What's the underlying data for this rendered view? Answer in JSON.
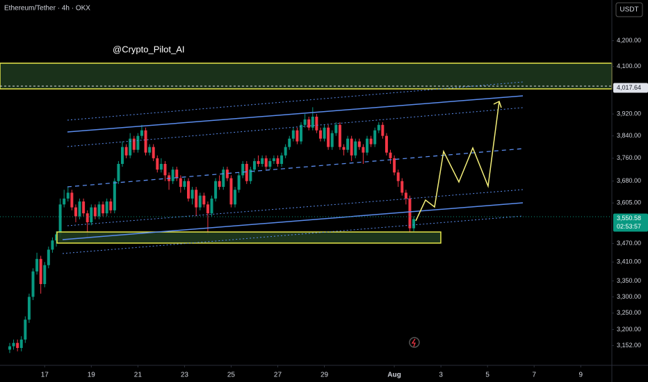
{
  "chart_data": {
    "type": "candlestick",
    "header": "Ethereum/Tether · 4h · OKX",
    "watermark": "@Crypto_Pilot_AI",
    "currency": "USDT",
    "log_scale": true,
    "up_color": "#089981",
    "down_color": "#f23645",
    "xlim": [
      -46,
      584
    ],
    "ylim": [
      3094,
      4364
    ],
    "xticks": [
      {
        "value": 0,
        "label": "17"
      },
      {
        "value": 48,
        "label": "19"
      },
      {
        "value": 96,
        "label": "21"
      },
      {
        "value": 144,
        "label": "23"
      },
      {
        "value": 192,
        "label": "25"
      },
      {
        "value": 240,
        "label": "27"
      },
      {
        "value": 288,
        "label": "29"
      },
      {
        "value": 360,
        "label": "Aug"
      },
      {
        "value": 408,
        "label": "3"
      },
      {
        "value": 456,
        "label": "5"
      },
      {
        "value": 504,
        "label": "7"
      },
      {
        "value": 552,
        "label": "9"
      }
    ],
    "yticks": [
      {
        "value": 4200,
        "label": "4,200.00"
      },
      {
        "value": 4100,
        "label": "4,100.00"
      },
      {
        "value": 4017.64,
        "label": "4,017.64"
      },
      {
        "value": 3920,
        "label": "3,920.00"
      },
      {
        "value": 3840,
        "label": "3,840.00"
      },
      {
        "value": 3760,
        "label": "3,760.00"
      },
      {
        "value": 3680,
        "label": "3,680.00"
      },
      {
        "value": 3605,
        "label": "3,605.00"
      },
      {
        "value": 3470,
        "label": "3,470.00"
      },
      {
        "value": 3410,
        "label": "3,410.00"
      },
      {
        "value": 3350,
        "label": "3,350.00"
      },
      {
        "value": 3300,
        "label": "3,300.00"
      },
      {
        "value": 3250,
        "label": "3,250.00"
      },
      {
        "value": 3200,
        "label": "3,200.00"
      },
      {
        "value": 3152,
        "label": "3,152.00"
      }
    ],
    "last_price": {
      "value": 3550.58,
      "label": "3,550.58"
    },
    "countdown": "02:53:57",
    "x": [
      -36,
      -32,
      -28,
      -24,
      -20,
      -16,
      -12,
      -8,
      -4,
      0,
      4,
      8,
      12,
      16,
      20,
      24,
      28,
      32,
      36,
      40,
      44,
      48,
      52,
      56,
      60,
      64,
      68,
      72,
      76,
      80,
      84,
      88,
      92,
      96,
      100,
      104,
      108,
      112,
      116,
      120,
      124,
      128,
      132,
      136,
      140,
      144,
      148,
      152,
      156,
      160,
      164,
      168,
      172,
      176,
      180,
      184,
      188,
      192,
      196,
      200,
      204,
      208,
      212,
      216,
      220,
      224,
      228,
      232,
      236,
      240,
      244,
      248,
      252,
      256,
      260,
      264,
      268,
      272,
      276,
      280,
      284,
      288,
      292,
      296,
      300,
      304,
      308,
      312,
      316,
      320,
      324,
      328,
      332,
      336,
      340,
      344,
      348,
      352,
      356,
      360,
      364,
      368,
      372,
      376,
      380
    ],
    "open": [
      3140,
      3150,
      3160,
      3145,
      3170,
      3230,
      3300,
      3380,
      3420,
      3340,
      3400,
      3450,
      3480,
      3500,
      3600,
      3620,
      3640,
      3590,
      3560,
      3610,
      3570,
      3540,
      3590,
      3560,
      3600,
      3570,
      3610,
      3580,
      3680,
      3740,
      3800,
      3770,
      3830,
      3790,
      3840,
      3860,
      3780,
      3800,
      3760,
      3720,
      3740,
      3700,
      3680,
      3720,
      3690,
      3660,
      3680,
      3620,
      3650,
      3590,
      3630,
      3600,
      3570,
      3620,
      3680,
      3660,
      3720,
      3690,
      3600,
      3650,
      3700,
      3740,
      3680,
      3720,
      3750,
      3740,
      3760,
      3730,
      3750,
      3760,
      3740,
      3770,
      3800,
      3830,
      3860,
      3820,
      3880,
      3900,
      3870,
      3910,
      3860,
      3830,
      3870,
      3800,
      3850,
      3880,
      3800,
      3790,
      3830,
      3770,
      3820,
      3800,
      3780,
      3830,
      3810,
      3860,
      3880,
      3840,
      3780,
      3760,
      3710,
      3680,
      3640,
      3620,
      3520
    ],
    "high": [
      3160,
      3170,
      3170,
      3180,
      3240,
      3310,
      3390,
      3440,
      3430,
      3410,
      3460,
      3490,
      3510,
      3620,
      3650,
      3660,
      3650,
      3600,
      3620,
      3620,
      3580,
      3600,
      3600,
      3610,
      3610,
      3620,
      3620,
      3690,
      3750,
      3820,
      3810,
      3850,
      3840,
      3850,
      3880,
      3870,
      3810,
      3810,
      3770,
      3760,
      3750,
      3710,
      3730,
      3730,
      3700,
      3690,
      3690,
      3660,
      3660,
      3640,
      3640,
      3610,
      3630,
      3690,
      3700,
      3730,
      3730,
      3700,
      3660,
      3710,
      3750,
      3750,
      3730,
      3760,
      3770,
      3770,
      3770,
      3760,
      3770,
      3770,
      3780,
      3810,
      3840,
      3870,
      3870,
      3890,
      3920,
      3910,
      3945,
      3920,
      3870,
      3880,
      3880,
      3860,
      3890,
      3890,
      3810,
      3840,
      3840,
      3830,
      3830,
      3810,
      3840,
      3840,
      3870,
      3890,
      3890,
      3850,
      3790,
      3770,
      3720,
      3690,
      3650,
      3630,
      3560
    ],
    "low": [
      3130,
      3140,
      3135,
      3135,
      3160,
      3220,
      3290,
      3370,
      3310,
      3330,
      3390,
      3440,
      3460,
      3490,
      3590,
      3610,
      3580,
      3540,
      3550,
      3560,
      3490,
      3530,
      3550,
      3550,
      3560,
      3560,
      3570,
      3570,
      3670,
      3730,
      3760,
      3760,
      3780,
      3780,
      3830,
      3770,
      3770,
      3750,
      3710,
      3710,
      3680,
      3650,
      3670,
      3680,
      3640,
      3650,
      3610,
      3600,
      3560,
      3580,
      3590,
      3500,
      3560,
      3610,
      3650,
      3650,
      3680,
      3590,
      3590,
      3640,
      3690,
      3670,
      3670,
      3710,
      3730,
      3730,
      3720,
      3720,
      3740,
      3730,
      3730,
      3760,
      3790,
      3820,
      3810,
      3810,
      3870,
      3860,
      3860,
      3850,
      3820,
      3820,
      3790,
      3790,
      3840,
      3790,
      3770,
      3780,
      3750,
      3760,
      3790,
      3740,
      3770,
      3800,
      3800,
      3850,
      3830,
      3770,
      3740,
      3700,
      3660,
      3630,
      3600,
      3505,
      3510
    ],
    "close": [
      3150,
      3160,
      3145,
      3170,
      3230,
      3300,
      3380,
      3420,
      3340,
      3400,
      3450,
      3480,
      3500,
      3600,
      3620,
      3640,
      3590,
      3560,
      3610,
      3570,
      3540,
      3590,
      3560,
      3600,
      3570,
      3610,
      3580,
      3680,
      3740,
      3800,
      3770,
      3830,
      3790,
      3840,
      3860,
      3780,
      3800,
      3760,
      3720,
      3740,
      3700,
      3680,
      3720,
      3690,
      3660,
      3680,
      3620,
      3650,
      3590,
      3630,
      3600,
      3570,
      3620,
      3680,
      3660,
      3720,
      3690,
      3600,
      3650,
      3700,
      3740,
      3680,
      3720,
      3750,
      3740,
      3760,
      3730,
      3750,
      3760,
      3740,
      3770,
      3800,
      3830,
      3860,
      3820,
      3880,
      3900,
      3870,
      3910,
      3860,
      3830,
      3870,
      3800,
      3850,
      3880,
      3800,
      3790,
      3830,
      3770,
      3820,
      3800,
      3780,
      3830,
      3810,
      3860,
      3880,
      3840,
      3780,
      3760,
      3710,
      3680,
      3640,
      3620,
      3520,
      3550.58
    ]
  }
}
